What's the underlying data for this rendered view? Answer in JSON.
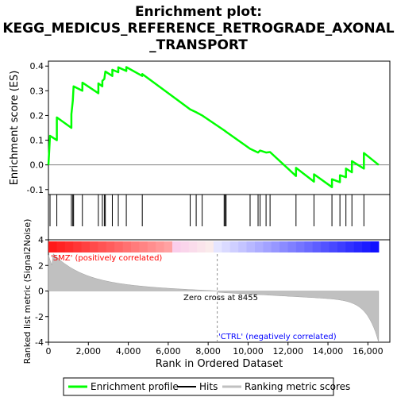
{
  "chart_data": {
    "type": "line",
    "title_line1": "Enrichment plot:",
    "title_line2": "KEGG_MEDICUS_REFERENCE_RETROGRADE_AXONAL",
    "title_line3": "_TRANSPORT",
    "es_ylabel": "Enrichment score (ES)",
    "metric_ylabel": "Ranked list metric (Signal2Noise)",
    "xlabel": "Rank in Ordered Dataset",
    "xlim": [
      0,
      17100
    ],
    "es_ylim": [
      -0.12,
      0.42
    ],
    "metric_ylim": [
      -4,
      4
    ],
    "x_ticks": [
      0,
      2000,
      4000,
      6000,
      8000,
      10000,
      12000,
      14000,
      16000
    ],
    "x_tick_labels": [
      "0",
      "2,000",
      "4,000",
      "6,000",
      "8,000",
      "10,000",
      "12,000",
      "14,000",
      "16,000"
    ],
    "es_ticks": [
      -0.1,
      0.0,
      0.1,
      0.2,
      0.3,
      0.4
    ],
    "es_tick_labels": [
      "-0.1",
      "0.0",
      "0.1",
      "0.2",
      "0.3",
      "0.4"
    ],
    "metric_ticks": [
      -4,
      -2,
      0,
      2,
      4
    ],
    "metric_tick_labels": [
      "-4",
      "-2",
      "0",
      "2",
      "4"
    ],
    "zero_cross_rank": 8455,
    "zero_cross_label": "Zero cross at 8455",
    "pos_label": "'SMZ' (positively correlated)",
    "neg_label": "'CTRL' (negatively correlated)",
    "n_genes": 16540,
    "hits": [
      80,
      420,
      1150,
      1220,
      1260,
      1700,
      2500,
      2700,
      2800,
      2850,
      3200,
      3500,
      3900,
      4700,
      7100,
      7400,
      7700,
      8800,
      8850,
      8900,
      10100,
      10500,
      10600,
      10900,
      11100,
      12400,
      13300,
      14200,
      14600,
      14900,
      15200,
      15800
    ],
    "es_points": [
      [
        0,
        0.0
      ],
      [
        80,
        0.118
      ],
      [
        420,
        0.1
      ],
      [
        421,
        0.192
      ],
      [
        1150,
        0.15
      ],
      [
        1151,
        0.205
      ],
      [
        1220,
        0.26
      ],
      [
        1260,
        0.318
      ],
      [
        1700,
        0.3
      ],
      [
        1701,
        0.333
      ],
      [
        2500,
        0.29
      ],
      [
        2501,
        0.33
      ],
      [
        2700,
        0.318
      ],
      [
        2701,
        0.34
      ],
      [
        2800,
        0.348
      ],
      [
        2850,
        0.378
      ],
      [
        3200,
        0.36
      ],
      [
        3201,
        0.385
      ],
      [
        3500,
        0.375
      ],
      [
        3501,
        0.395
      ],
      [
        3900,
        0.38
      ],
      [
        3901,
        0.396
      ],
      [
        4700,
        0.36
      ],
      [
        4701,
        0.368
      ],
      [
        7100,
        0.225
      ],
      [
        7400,
        0.213
      ],
      [
        7700,
        0.2
      ],
      [
        8800,
        0.14
      ],
      [
        8850,
        0.137
      ],
      [
        8900,
        0.134
      ],
      [
        10100,
        0.065
      ],
      [
        10500,
        0.05
      ],
      [
        10600,
        0.058
      ],
      [
        10900,
        0.05
      ],
      [
        11100,
        0.052
      ],
      [
        12400,
        -0.045
      ],
      [
        12401,
        -0.012
      ],
      [
        13300,
        -0.068
      ],
      [
        13301,
        -0.038
      ],
      [
        14200,
        -0.09
      ],
      [
        14201,
        -0.058
      ],
      [
        14600,
        -0.07
      ],
      [
        14601,
        -0.042
      ],
      [
        14900,
        -0.05
      ],
      [
        14901,
        -0.015
      ],
      [
        15200,
        -0.03
      ],
      [
        15201,
        0.015
      ],
      [
        15800,
        -0.015
      ],
      [
        15801,
        0.048
      ],
      [
        16540,
        0.0
      ]
    ],
    "series": [
      {
        "name": "Enrichment profile",
        "color": "#00ff00"
      },
      {
        "name": "Hits",
        "color": "#000000"
      },
      {
        "name": "Ranking metric scores",
        "color": "#c0c0c0"
      }
    ]
  },
  "legend": {
    "enrichment_profile": "Enrichment profile",
    "hits": "Hits",
    "ranking_metric_scores": "Ranking metric scores"
  },
  "colors": {
    "es_line": "#00ff00",
    "metric_fill": "#c0c0c0",
    "pos_label": "#ff0000",
    "neg_label": "#0000ff"
  }
}
